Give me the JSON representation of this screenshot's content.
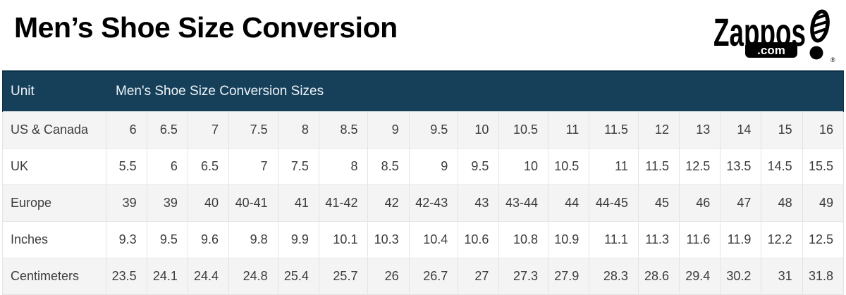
{
  "page": {
    "title": "Men’s Shoe Size Conversion"
  },
  "logo": {
    "brand": "Zappos",
    "domain": ".com",
    "registered_mark": "®",
    "icon": "shoeprint-exclamation-icon",
    "color": "#000000"
  },
  "table_header": {
    "unit_label": "Unit",
    "sizes_label": "Men's Shoe Size Conversion Sizes"
  },
  "theme": {
    "navy": "#16405a",
    "navy_dark": "#0d3248",
    "stripe": "#f4f4f4",
    "row_white": "#ffffff",
    "border": "#e4e4e4",
    "cell_text": "#3c3c3c",
    "header_text": "#eef3f7",
    "title_color": "#000000",
    "logo_color": "#000000"
  },
  "chart_data": {
    "type": "table",
    "title": "Men’s Shoe Size Conversion",
    "columns": [
      "Unit",
      "Men's Shoe Size Conversion Sizes"
    ],
    "rows": [
      {
        "label": "US & Canada",
        "values": [
          "6",
          "6.5",
          "7",
          "7.5",
          "8",
          "8.5",
          "9",
          "9.5",
          "10",
          "10.5",
          "11",
          "11.5",
          "12",
          "13",
          "14",
          "15",
          "16"
        ]
      },
      {
        "label": "UK",
        "values": [
          "5.5",
          "6",
          "6.5",
          "7",
          "7.5",
          "8",
          "8.5",
          "9",
          "9.5",
          "10",
          "10.5",
          "11",
          "11.5",
          "12.5",
          "13.5",
          "14.5",
          "15.5"
        ]
      },
      {
        "label": "Europe",
        "values": [
          "39",
          "39",
          "40",
          "40-41",
          "41",
          "41-42",
          "42",
          "42-43",
          "43",
          "43-44",
          "44",
          "44-45",
          "45",
          "46",
          "47",
          "48",
          "49"
        ]
      },
      {
        "label": "Inches",
        "values": [
          "9.3",
          "9.5",
          "9.6",
          "9.8",
          "9.9",
          "10.1",
          "10.3",
          "10.4",
          "10.6",
          "10.8",
          "10.9",
          "11.1",
          "11.3",
          "11.6",
          "11.9",
          "12.2",
          "12.5"
        ]
      },
      {
        "label": "Centimeters",
        "values": [
          "23.5",
          "24.1",
          "24.4",
          "24.8",
          "25.4",
          "25.7",
          "26",
          "26.7",
          "27",
          "27.3",
          "27.9",
          "28.3",
          "28.6",
          "29.4",
          "30.2",
          "31",
          "31.8"
        ]
      }
    ],
    "layout": {
      "striped": true,
      "stripe_rows": "odd",
      "header_background": "#16405a"
    }
  }
}
